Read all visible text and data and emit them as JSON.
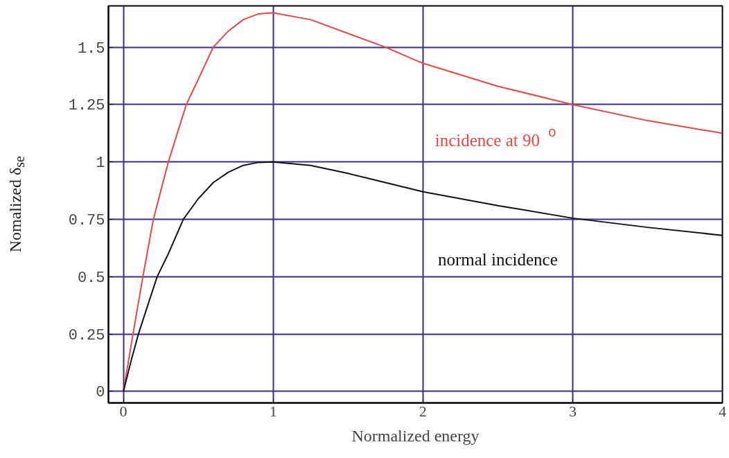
{
  "chart_data": {
    "type": "line",
    "xlabel": "Normalized energy",
    "ylabel": "Nomalized δ$_{se}$",
    "x": [
      0,
      0.05,
      0.1,
      0.225,
      0.3,
      0.4,
      0.5,
      0.6,
      0.7,
      0.8,
      0.9,
      1,
      1.25,
      1.5,
      1.75,
      2,
      2.5,
      3,
      3.5,
      4
    ],
    "series": [
      {
        "name": "incidence at 90$^{o}$",
        "color": "#ee4444",
        "x": [
          0,
          0.064,
          0.13,
          0.2,
          0.3,
          0.42,
          0.5,
          0.6,
          0.7,
          0.8,
          0.9,
          1,
          1.25,
          1.5,
          1.75,
          2,
          2.5,
          3,
          3.5,
          4
        ],
        "values": [
          0,
          0.25,
          0.5,
          0.75,
          1.0,
          1.25,
          1.36,
          1.5,
          1.57,
          1.62,
          1.645,
          1.65,
          1.62,
          1.56,
          1.5,
          1.43,
          1.33,
          1.25,
          1.18,
          1.125
        ]
      },
      {
        "name": "normal incidence",
        "color": "#111111",
        "values": [
          0,
          0.13,
          0.25,
          0.5,
          0.6,
          0.75,
          0.84,
          0.91,
          0.955,
          0.985,
          0.998,
          1,
          0.985,
          0.95,
          0.91,
          0.87,
          0.81,
          0.755,
          0.715,
          0.68
        ]
      }
    ],
    "xlim": [
      -0.1,
      4
    ],
    "ylim": [
      -0.05,
      1.68
    ],
    "xticks": [
      0,
      1,
      2,
      3,
      4
    ],
    "yticks": [
      0,
      {
        "value": 0.25,
        "label": "0.25"
      },
      {
        "value": 0.5,
        "label": "0.5"
      },
      {
        "value": 0.75,
        "label": "0.75"
      },
      1,
      {
        "value": 1.25,
        "label": "1.25"
      },
      {
        "value": 1.5,
        "label": "1.5"
      }
    ],
    "grid": true,
    "line_style": "solid",
    "marker": "none"
  }
}
